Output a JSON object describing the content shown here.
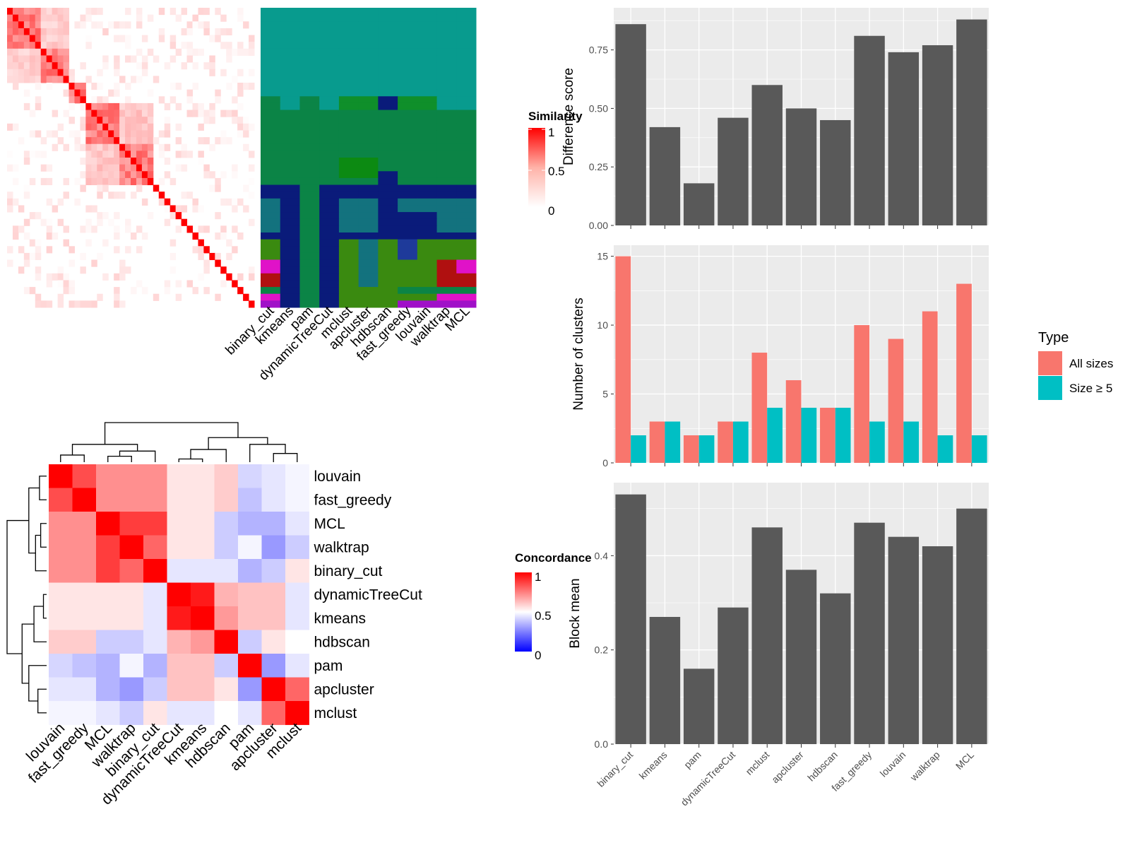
{
  "colors": {
    "panel_bg": "#EBEBEB",
    "grid": "#FFFFFF",
    "bar": "#595959",
    "all_sizes": "#F8766D",
    "size_ge5": "#00BFC4",
    "axis_text": "#4D4D4D",
    "heat_high": "#FF0000",
    "heat_mid_sim": "#FFB2A8",
    "heat_low": "#FFFFFF",
    "legend_low_blue": "#0000FF"
  },
  "methods": [
    "binary_cut",
    "kmeans",
    "pam",
    "dynamicTreeCut",
    "mclust",
    "apcluster",
    "hdbscan",
    "fast_greedy",
    "louvain",
    "walktrap",
    "MCL"
  ],
  "similarity_legend": {
    "title": "Similarity",
    "ticks": [
      "1",
      "0.5",
      "0"
    ]
  },
  "concordance_legend": {
    "title": "Concordance",
    "ticks": [
      "1",
      "0.5",
      "0"
    ]
  },
  "concordance_order": [
    "louvain",
    "fast_greedy",
    "MCL",
    "walktrap",
    "binary_cut",
    "dynamicTreeCut",
    "kmeans",
    "hdbscan",
    "pam",
    "apcluster",
    "mclust"
  ],
  "concordance_matrix": [
    [
      1.0,
      0.85,
      0.72,
      0.72,
      0.72,
      0.55,
      0.55,
      0.6,
      0.42,
      0.45,
      0.48
    ],
    [
      0.85,
      1.0,
      0.72,
      0.72,
      0.72,
      0.55,
      0.55,
      0.6,
      0.38,
      0.45,
      0.48
    ],
    [
      0.72,
      0.72,
      1.0,
      0.88,
      0.88,
      0.55,
      0.55,
      0.4,
      0.35,
      0.35,
      0.45
    ],
    [
      0.72,
      0.72,
      0.88,
      1.0,
      0.8,
      0.55,
      0.55,
      0.4,
      0.48,
      0.3,
      0.4
    ],
    [
      0.72,
      0.72,
      0.88,
      0.8,
      1.0,
      0.45,
      0.45,
      0.45,
      0.35,
      0.4,
      0.55
    ],
    [
      0.55,
      0.55,
      0.55,
      0.55,
      0.45,
      1.0,
      0.95,
      0.65,
      0.62,
      0.62,
      0.45
    ],
    [
      0.55,
      0.55,
      0.55,
      0.55,
      0.45,
      0.95,
      1.0,
      0.7,
      0.62,
      0.62,
      0.45
    ],
    [
      0.6,
      0.6,
      0.4,
      0.4,
      0.45,
      0.65,
      0.7,
      1.0,
      0.4,
      0.55,
      0.5
    ],
    [
      0.42,
      0.38,
      0.35,
      0.48,
      0.35,
      0.62,
      0.62,
      0.4,
      1.0,
      0.3,
      0.45
    ],
    [
      0.45,
      0.45,
      0.35,
      0.3,
      0.4,
      0.62,
      0.62,
      0.55,
      0.3,
      1.0,
      0.8
    ],
    [
      0.48,
      0.48,
      0.45,
      0.4,
      0.55,
      0.45,
      0.45,
      0.5,
      0.45,
      0.8,
      1.0
    ]
  ],
  "chart_data": [
    {
      "type": "bar",
      "categories": [
        "binary_cut",
        "kmeans",
        "pam",
        "dynamicTreeCut",
        "mclust",
        "apcluster",
        "hdbscan",
        "fast_greedy",
        "louvain",
        "walktrap",
        "MCL"
      ],
      "values": [
        0.86,
        0.42,
        0.18,
        0.46,
        0.6,
        0.5,
        0.45,
        0.81,
        0.74,
        0.77,
        0.88
      ],
      "ylabel": "Difference score",
      "ylim": [
        0,
        0.93
      ],
      "yticks": [
        0,
        0.25,
        0.5,
        0.75
      ],
      "ytick_labels": [
        "0.00",
        "0.25",
        "0.50",
        "0.75"
      ]
    },
    {
      "type": "bar",
      "categories": [
        "binary_cut",
        "kmeans",
        "pam",
        "dynamicTreeCut",
        "mclust",
        "apcluster",
        "hdbscan",
        "fast_greedy",
        "louvain",
        "walktrap",
        "MCL"
      ],
      "series": [
        {
          "name": "All sizes",
          "values": [
            15,
            3,
            2,
            3,
            8,
            6,
            4,
            10,
            9,
            11,
            13
          ]
        },
        {
          "name": "Size ≥ 5",
          "values": [
            2,
            3,
            2,
            3,
            4,
            4,
            4,
            3,
            3,
            2,
            2
          ]
        }
      ],
      "ylabel": "Number of clusters",
      "ylim": [
        0,
        15.8
      ],
      "yticks": [
        0,
        5,
        10,
        15
      ],
      "ytick_labels": [
        "0",
        "5",
        "10",
        "15"
      ],
      "legend_title": "Type",
      "legend_position": "right"
    },
    {
      "type": "bar",
      "categories": [
        "binary_cut",
        "kmeans",
        "pam",
        "dynamicTreeCut",
        "mclust",
        "apcluster",
        "hdbscan",
        "fast_greedy",
        "louvain",
        "walktrap",
        "MCL"
      ],
      "values": [
        0.53,
        0.27,
        0.16,
        0.29,
        0.46,
        0.37,
        0.32,
        0.47,
        0.44,
        0.42,
        0.5
      ],
      "ylabel": "Block mean",
      "ylim": [
        0,
        0.555
      ],
      "yticks": [
        0,
        0.2,
        0.4
      ],
      "ytick_labels": [
        "0.0",
        "0.2",
        "0.4"
      ]
    }
  ]
}
